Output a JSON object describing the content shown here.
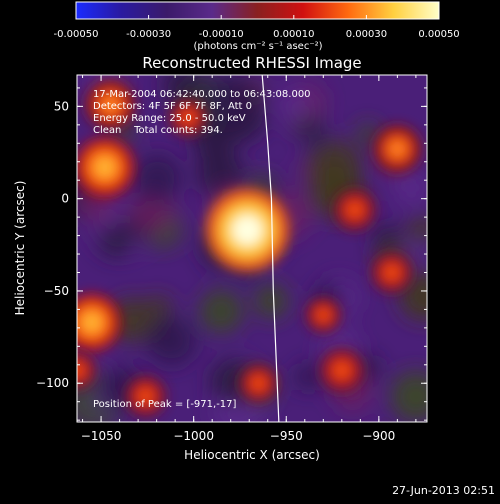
{
  "colorbar": {
    "tick_labels": [
      "-0.00050",
      "-0.00030",
      "-0.00010",
      "0.00010",
      "0.00030",
      "0.00050"
    ],
    "tick_values": [
      -0.0005,
      -0.0003,
      -0.0001,
      0.0001,
      0.0003,
      0.0005
    ],
    "range": [
      -0.0005,
      0.0005
    ],
    "units_label": "(photons cm⁻² s⁻¹ asec⁻²)",
    "colors": [
      "#1a2bff",
      "#2a1aa0",
      "#3b1a6a",
      "#5a2a8a",
      "#8a2020",
      "#d01010",
      "#ff6a10",
      "#ffd040",
      "#ffffc8"
    ]
  },
  "chart_data": {
    "type": "heatmap",
    "title": "Reconstructed RHESSI Image",
    "xlabel": "Heliocentric X (arcsec)",
    "ylabel": "Heliocentric Y (arcsec)",
    "xlim": [
      -1063,
      -874
    ],
    "ylim": [
      -121,
      67
    ],
    "x_ticks": [
      -1050,
      -1000,
      -950,
      -900
    ],
    "y_ticks": [
      -100,
      -50,
      0,
      50
    ],
    "x_tick_labels": [
      "−1050",
      "−1000",
      "−950",
      "−900"
    ],
    "y_tick_labels": [
      "−100",
      "−50",
      "0",
      "50"
    ],
    "peak": {
      "x": -971,
      "y": -17
    },
    "bright_sources": [
      {
        "x": -971,
        "y": -17,
        "intensity": 0.0005
      },
      {
        "x": -1048,
        "y": 17,
        "intensity": 0.0003
      },
      {
        "x": -1055,
        "y": -67,
        "intensity": 0.00028
      },
      {
        "x": -1045,
        "y": 51,
        "intensity": 0.00022
      },
      {
        "x": -1003,
        "y": 44,
        "intensity": 0.00012
      },
      {
        "x": -913,
        "y": -6,
        "intensity": 0.00016
      },
      {
        "x": -890,
        "y": 27,
        "intensity": 0.0002
      },
      {
        "x": -893,
        "y": -40,
        "intensity": 0.00015
      },
      {
        "x": -920,
        "y": -93,
        "intensity": 0.00018
      },
      {
        "x": -965,
        "y": -100,
        "intensity": 0.00013
      },
      {
        "x": -1026,
        "y": -107,
        "intensity": 0.00015
      },
      {
        "x": -930,
        "y": -63,
        "intensity": 0.0001
      },
      {
        "x": -1063,
        "y": -93,
        "intensity": 0.00012
      }
    ],
    "annotations": [
      "17-Mar-2004 06:42:40.000 to 06:43:08.000",
      "Detectors: 4F 5F 6F 7F 8F, Att 0",
      "Energy Range: 25.0 - 50.0 keV",
      "Clean    Total counts: 394."
    ],
    "peak_label": "Position of Peak = [-971,-17]",
    "limb_line": [
      {
        "x": -963,
        "y": 67
      },
      {
        "x": -960,
        "y": 30
      },
      {
        "x": -958,
        "y": 0
      },
      {
        "x": -957,
        "y": -50
      },
      {
        "x": -954,
        "y": -121
      }
    ]
  },
  "footer": {
    "timestamp": "27-Jun-2013 02:51"
  }
}
